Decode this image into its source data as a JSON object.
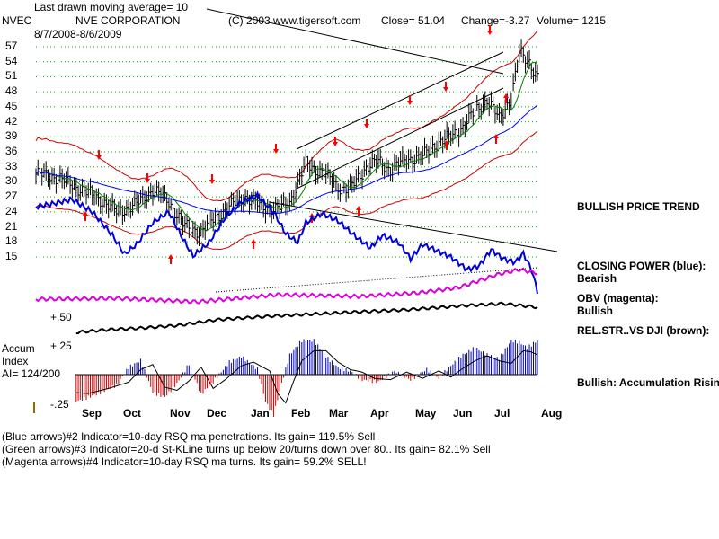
{
  "header": {
    "ticker": "NVEC",
    "last_ma": "Last drawn moving average= 10",
    "company": "NVE CORPORATION",
    "copyright": "(C) 2003 www.tigersoft.com",
    "close": "Close=  51.04",
    "change": "Change=-3.27",
    "volume": "Volume= 1215",
    "daterange": "8/7/2008-8/6/2009"
  },
  "chart_data": {
    "type": "line",
    "title": "NVE CORPORATION",
    "price_axis": {
      "ticks": [
        "57",
        "54",
        "51",
        "48",
        "45",
        "42",
        "39",
        "36",
        "33",
        "30",
        "27",
        "24",
        "21",
        "18",
        "15"
      ],
      "range": [
        15,
        57
      ]
    },
    "months": [
      "Sep",
      "Oct",
      "Nov",
      "Dec",
      "Jan",
      "Feb",
      "Mar",
      "Apr",
      "May",
      "Jun",
      "Jul",
      "Aug"
    ],
    "series": [
      {
        "name": "Price",
        "x": [
          "Aug",
          "Sep",
          "Oct",
          "Nov",
          "Dec",
          "Jan",
          "Feb",
          "Mar",
          "Apr",
          "May",
          "Jun",
          "Jul",
          "Aug"
        ],
        "values": [
          31,
          28,
          26,
          21,
          26,
          25,
          29,
          33,
          35,
          38,
          45,
          52,
          51
        ]
      }
    ],
    "close": 51.04,
    "change": -3.27,
    "volume": 1215,
    "accum_ticks": [
      "+.50",
      "+.25",
      "-.25"
    ]
  },
  "indicators": {
    "accum_label_1": "Accum",
    "accum_label_2": "Index",
    "ai": "AI= 124/200"
  },
  "side_labels": {
    "trend": "BULLISH PRICE TREND",
    "cp_title": "CLOSING POWER (blue):",
    "cp_value": "Bearish",
    "obv_title": "OBV (magenta):",
    "obv_value": "Bullish",
    "relstr": "REL.STR..VS DJI (brown):",
    "accum_status": "Bullish: Accumulation Rising"
  },
  "footer": {
    "line1": "(Blue arrows)#2 Indicator=10-day RSQ ma penetrations. Its gain= 119.5% Sell",
    "line2": "(Green arrows)#3 Indicator=20-d St-KLine turns up below 20/turns down over 80.. Its gain= 82.1% Sell",
    "line3": "(Magenta arrows)#4 Indicator=10-day RSQ ma turns. Its gain= 59.2% SELL!"
  },
  "colors": {
    "price": "#000000",
    "ma_green": "#008000",
    "ma_blue": "#0000ff",
    "band_red": "#cc0000",
    "closing_power": "#0000dd",
    "obv": "#dd00dd",
    "relstr": "#000000",
    "accum_pos": "#0000aa",
    "accum_neg": "#cc0000",
    "arrow": "#ff0000",
    "grid": "#00aa00"
  }
}
